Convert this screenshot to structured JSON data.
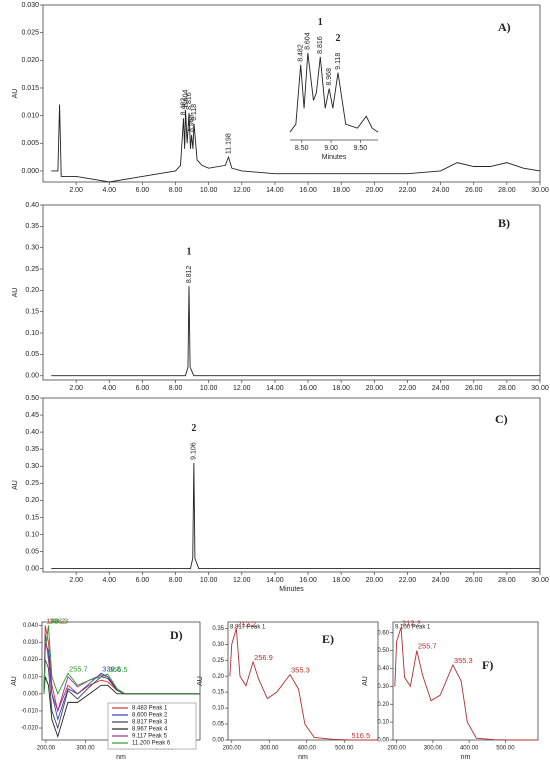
{
  "chart_data": [
    {
      "type": "line",
      "panel_label": "A)",
      "y_label": "AU",
      "color": "#222222",
      "xlim": [
        0,
        30
      ],
      "ylim": [
        -0.002,
        0.03
      ],
      "xticks": [
        {
          "value": 2,
          "label": "2.00"
        },
        {
          "value": 4,
          "label": "4.00"
        },
        {
          "value": 6,
          "label": "6.00"
        },
        {
          "value": 8,
          "label": "8.00"
        },
        {
          "value": 10,
          "label": "10.00"
        },
        {
          "value": 12,
          "label": "12.00"
        },
        {
          "value": 14,
          "label": "14.00"
        },
        {
          "value": 16,
          "label": "16.00"
        },
        {
          "value": 18,
          "label": "18.00"
        },
        {
          "value": 20,
          "label": "20.00"
        },
        {
          "value": 22,
          "label": "22.00"
        },
        {
          "value": 24,
          "label": "24.00"
        },
        {
          "value": 26,
          "label": "26.00"
        },
        {
          "value": 28,
          "label": "28.00"
        },
        {
          "value": 30,
          "label": "30.00"
        }
      ],
      "yticks": [
        {
          "value": 0,
          "label": "0.000"
        },
        0.005,
        {
          "value": 0.01,
          "label": "0.010"
        },
        0.015,
        {
          "value": 0.02,
          "label": "0.020"
        },
        0.025,
        {
          "value": 0.03,
          "label": "0.030"
        }
      ],
      "x": [
        0.5,
        0.9,
        1.0,
        1.1,
        1.5,
        2,
        3,
        4,
        5,
        6,
        7,
        8,
        8.3,
        8.482,
        8.55,
        8.604,
        8.7,
        8.816,
        8.9,
        8.968,
        9.05,
        9.118,
        9.3,
        9.6,
        10,
        11,
        11.198,
        11.4,
        12,
        14,
        16,
        18,
        20,
        22,
        24,
        25,
        26,
        27,
        28,
        29,
        30
      ],
      "values": [
        0,
        0,
        0.012,
        -0.001,
        -0.001,
        -0.001,
        -0.0015,
        -0.002,
        -0.0015,
        -0.001,
        -0.0005,
        0,
        0.001,
        0.0095,
        0.004,
        0.011,
        0.005,
        0.0105,
        0.004,
        0.0065,
        0.004,
        0.0085,
        0.002,
        0.001,
        0.0005,
        0.001,
        0.0025,
        0.0005,
        0,
        -0.0005,
        -0.0005,
        -0.0005,
        -0.0005,
        -0.0005,
        0,
        0.0015,
        0.0008,
        0.0008,
        0.0015,
        0.0005,
        0
      ],
      "peaks": [
        {
          "x": 8.482
        },
        {
          "x": 8.604
        },
        {
          "x": 8.816
        },
        {
          "x": 8.968
        },
        {
          "x": 9.118
        },
        {
          "x": 11.198
        }
      ]
    },
    {
      "type": "line",
      "x_label": "Minutes",
      "color": "#222222",
      "xlim": [
        8.3,
        9.8
      ],
      "ylim": [
        0,
        0.012
      ],
      "xticks": [
        {
          "value": 8.5,
          "label": "8.50"
        },
        {
          "value": 9,
          "label": "9.00"
        },
        {
          "value": 9.5,
          "label": "9.50"
        }
      ],
      "x": [
        8.3,
        8.4,
        8.482,
        8.54,
        8.604,
        8.7,
        8.75,
        8.816,
        8.9,
        8.968,
        9.03,
        9.118,
        9.25,
        9.45,
        9.6,
        9.7,
        9.8
      ],
      "values": [
        0.001,
        0.002,
        0.0095,
        0.004,
        0.011,
        0.005,
        0.006,
        0.0105,
        0.004,
        0.0065,
        0.004,
        0.0085,
        0.002,
        0.0015,
        0.003,
        0.0015,
        0.001
      ],
      "peaks": [
        {
          "x": 8.482
        },
        {
          "x": 8.604
        },
        {
          "x": 8.816,
          "tag": "1"
        },
        {
          "x": 8.968
        },
        {
          "x": 9.118,
          "tag": "2"
        }
      ]
    },
    {
      "type": "line",
      "panel_label": "B)",
      "y_label": "AU",
      "color": "#222222",
      "xlim": [
        0,
        30
      ],
      "ylim": [
        -0.01,
        0.4
      ],
      "xticks": [
        {
          "value": 2,
          "label": "2.00"
        },
        {
          "value": 4,
          "label": "4.00"
        },
        {
          "value": 6,
          "label": "6.00"
        },
        {
          "value": 8,
          "label": "8.00"
        },
        {
          "value": 10,
          "label": "10.00"
        },
        {
          "value": 12,
          "label": "12.00"
        },
        {
          "value": 14,
          "label": "14.00"
        },
        {
          "value": 16,
          "label": "16.00"
        },
        {
          "value": 18,
          "label": "18.00"
        },
        {
          "value": 20,
          "label": "20.00"
        },
        {
          "value": 22,
          "label": "22.00"
        },
        {
          "value": 24,
          "label": "24.00"
        },
        {
          "value": 26,
          "label": "26.00"
        },
        {
          "value": 28,
          "label": "28.00"
        },
        {
          "value": 30,
          "label": "30.00"
        }
      ],
      "yticks": [
        {
          "value": 0,
          "label": "0.00"
        },
        0.05,
        {
          "value": 0.1,
          "label": "0.10"
        },
        0.15,
        {
          "value": 0.2,
          "label": "0.20"
        },
        0.25,
        {
          "value": 0.3,
          "label": "0.30"
        },
        0.35,
        {
          "value": 0.4,
          "label": "0.40"
        }
      ],
      "x": [
        0.5,
        6,
        8.6,
        8.75,
        8.812,
        8.88,
        9.1,
        15,
        25,
        30
      ],
      "values": [
        0,
        0,
        0,
        0.02,
        0.21,
        0.02,
        0,
        0,
        0,
        0
      ],
      "peaks": [
        {
          "x": 8.812,
          "tag": "1"
        }
      ]
    },
    {
      "type": "line",
      "panel_label": "C)",
      "y_label": "AU",
      "x_label": "Minutes",
      "color": "#222222",
      "xlim": [
        0,
        30
      ],
      "ylim": [
        -0.01,
        0.5
      ],
      "xticks": [
        {
          "value": 2,
          "label": "2.00"
        },
        {
          "value": 4,
          "label": "4.00"
        },
        {
          "value": 6,
          "label": "6.00"
        },
        {
          "value": 8,
          "label": "8.00"
        },
        {
          "value": 10,
          "label": "10.00"
        },
        {
          "value": 12,
          "label": "12.00"
        },
        {
          "value": 14,
          "label": "14.00"
        },
        {
          "value": 16,
          "label": "16.00"
        },
        {
          "value": 18,
          "label": "18.00"
        },
        {
          "value": 20,
          "label": "20.00"
        },
        {
          "value": 22,
          "label": "22.00"
        },
        {
          "value": 24,
          "label": "24.00"
        },
        {
          "value": 26,
          "label": "26.00"
        },
        {
          "value": 28,
          "label": "28.00"
        },
        {
          "value": 30,
          "label": "30.00"
        }
      ],
      "yticks": [
        {
          "value": 0,
          "label": "0.00"
        },
        0.05,
        {
          "value": 0.1,
          "label": "0.10"
        },
        0.15,
        {
          "value": 0.2,
          "label": "0.20"
        },
        0.25,
        {
          "value": 0.3,
          "label": "0.30"
        },
        0.35,
        {
          "value": 0.4,
          "label": "0.40"
        },
        0.45,
        {
          "value": 0.5,
          "label": "0.50"
        }
      ],
      "x": [
        0.5,
        6,
        8.9,
        9.04,
        9.106,
        9.17,
        9.4,
        15,
        25,
        30
      ],
      "values": [
        0,
        0,
        0,
        0.03,
        0.31,
        0.03,
        0,
        0,
        0,
        0
      ],
      "peaks": [
        {
          "x": 9.106,
          "tag": "2"
        }
      ]
    },
    {
      "type": "line",
      "panel_label": "D)",
      "y_label": "AU",
      "x_label": "nm",
      "xlim": [
        190,
        590
      ],
      "ylim": [
        -0.027,
        0.042
      ],
      "xticks": [
        {
          "value": 200,
          "label": "200.00"
        },
        {
          "value": 300,
          "label": "300.00"
        },
        {
          "value": 400,
          "label": "400.00"
        },
        {
          "value": 500,
          "label": "500.00"
        }
      ],
      "yticks": [
        {
          "value": -0.02,
          "label": "-0.020"
        },
        {
          "value": -0.01,
          "label": "-0.010"
        },
        {
          "value": 0,
          "label": "0.000"
        },
        {
          "value": 0.01,
          "label": "0.010"
        },
        {
          "value": 0.02,
          "label": "0.020"
        },
        {
          "value": 0.03,
          "label": "0.030"
        },
        {
          "value": 0.04,
          "label": "0.040"
        }
      ],
      "x": [
        195,
        198.2,
        206.3,
        215,
        230,
        255.7,
        280,
        310,
        339.8,
        356.5,
        380,
        400,
        450,
        590
      ],
      "series": [
        {
          "name": "8.483 Peak 1",
          "color": "#d03030",
          "values": [
            0,
            0.04,
            0.03,
            0.005,
            -0.01,
            0.005,
            0,
            0.005,
            0.008,
            0.007,
            0.002,
            0,
            0,
            0
          ]
        },
        {
          "name": "8.600 Peak 2",
          "color": "#3040c0",
          "values": [
            0,
            0.03,
            0.025,
            0,
            -0.015,
            0.003,
            0,
            0.006,
            0.012,
            0.01,
            0.002,
            0,
            0,
            0
          ]
        },
        {
          "name": "8.817 Peak 3",
          "color": "#404060",
          "values": [
            0,
            0.02,
            0.015,
            -0.01,
            -0.02,
            0.002,
            -0.003,
            0.004,
            0.01,
            0.009,
            0.002,
            0,
            0,
            0
          ]
        },
        {
          "name": "8.967 Peak 4",
          "color": "#222222",
          "values": [
            0,
            0.01,
            0.005,
            -0.015,
            -0.025,
            -0.005,
            -0.005,
            0,
            0.005,
            0.005,
            0,
            0,
            0,
            0
          ]
        },
        {
          "name": "9.117 Peak 5",
          "color": "#9030a0",
          "values": [
            0,
            0.035,
            0.02,
            0,
            -0.01,
            0.01,
            0.004,
            0.008,
            0.011,
            0.01,
            0.003,
            0,
            0,
            0
          ]
        },
        {
          "name": "11.200 Peak 6",
          "color": "#2a9a2a",
          "values": [
            0,
            0.025,
            0.04,
            0.01,
            0,
            0.012,
            0.005,
            0.008,
            0.01,
            0.0115,
            0.003,
            0,
            0,
            0
          ]
        }
      ],
      "peaks": [
        {
          "x": 198.2,
          "color": "#d03030"
        },
        {
          "x": 206.3,
          "color": "#2a9a2a"
        },
        {
          "x": 255.7,
          "color": "#2a9a2a"
        },
        {
          "x": 339.8,
          "color": "#3040c0"
        },
        {
          "x": 356.5,
          "color": "#2a9a2a"
        }
      ]
    },
    {
      "type": "line",
      "panel_label": "E)",
      "spectrum_label": "8.817 Peak 1",
      "y_label": "AU",
      "x_label": "nm",
      "color": "#b03030",
      "xlim": [
        190,
        590
      ],
      "ylim": [
        0,
        0.37
      ],
      "xticks": [
        {
          "value": 200,
          "label": "200.00"
        },
        {
          "value": 300,
          "label": "300.00"
        },
        {
          "value": 400,
          "label": "400.00"
        },
        {
          "value": 500,
          "label": "500.00"
        }
      ],
      "yticks": [
        {
          "value": 0,
          "label": "0.00"
        },
        0.05,
        {
          "value": 0.1,
          "label": "0.10"
        },
        0.15,
        {
          "value": 0.2,
          "label": "0.20"
        },
        0.25,
        {
          "value": 0.3,
          "label": "0.30"
        },
        0.35
      ],
      "x": [
        195,
        200,
        212.2,
        222,
        238,
        256.9,
        272,
        295,
        320,
        355.3,
        378,
        395,
        420,
        470,
        516.5,
        590
      ],
      "values": [
        0.2,
        0.3,
        0.35,
        0.2,
        0.17,
        0.245,
        0.19,
        0.13,
        0.15,
        0.205,
        0.16,
        0.05,
        0.008,
        0.002,
        0,
        0
      ],
      "peaks": [
        {
          "x": 212.2
        },
        {
          "x": 256.9
        },
        {
          "x": 355.3
        },
        {
          "x": 516.5
        }
      ]
    },
    {
      "type": "line",
      "panel_label": "F)",
      "spectrum_label": "9.100 Peak 1",
      "y_label": "AU",
      "x_label": "nm",
      "color": "#b03030",
      "xlim": [
        190,
        590
      ],
      "ylim": [
        0,
        0.66
      ],
      "xticks": [
        {
          "value": 200,
          "label": "200.00"
        },
        {
          "value": 300,
          "label": "300.00"
        },
        {
          "value": 400,
          "label": "400.00"
        },
        {
          "value": 500,
          "label": "500.00"
        }
      ],
      "yticks": [
        {
          "value": 0,
          "label": "0.00"
        },
        {
          "value": 0.1,
          "label": "0.10"
        },
        {
          "value": 0.2,
          "label": "0.20"
        },
        {
          "value": 0.3,
          "label": "0.30"
        },
        {
          "value": 0.4,
          "label": "0.40"
        },
        {
          "value": 0.5,
          "label": "0.50"
        },
        {
          "value": 0.6,
          "label": "0.60"
        }
      ],
      "x": [
        195,
        200,
        212.2,
        222,
        238,
        255.7,
        272,
        295,
        320,
        355.3,
        378,
        395,
        420,
        470,
        510,
        590
      ],
      "values": [
        0.3,
        0.55,
        0.63,
        0.35,
        0.3,
        0.5,
        0.36,
        0.22,
        0.25,
        0.42,
        0.33,
        0.1,
        0.01,
        0.002,
        0,
        0
      ],
      "peaks": [
        {
          "x": 212.2
        },
        {
          "x": 255.7
        },
        {
          "x": 355.3
        }
      ]
    }
  ]
}
